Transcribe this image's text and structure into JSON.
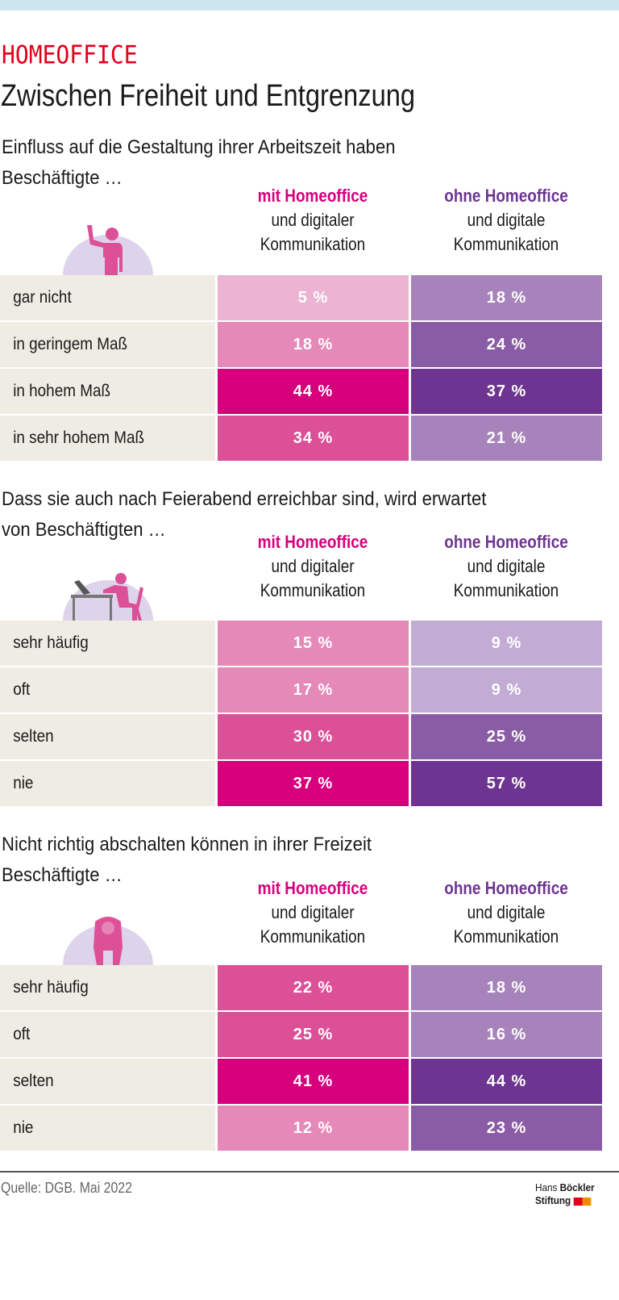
{
  "kicker": "HOMEOFFICE",
  "title": "Zwischen Freiheit und Entgrenzung",
  "colors": {
    "kicker": "#e2001a",
    "mit": "#d6007d",
    "ohne": "#6d3591",
    "label_bg": "#efede3",
    "icon_bg": "#ddd3ea",
    "pink": [
      "#ecb3d3",
      "#e589b9",
      "#dc5097",
      "#d6007d"
    ],
    "purple": [
      "#c2acd4",
      "#a783bb",
      "#8b5ca6",
      "#6d3591"
    ]
  },
  "sections": [
    {
      "question": [
        "Einfluss auf die Gestaltung ihrer Arbeitszeit haben",
        "Beschäftigte …"
      ],
      "icon": "person-raising-hand-icon",
      "col_mit": {
        "head": "mit Homeoffice",
        "sub1": "und digitaler",
        "sub2": "Kommunikation"
      },
      "col_ohne": {
        "head": "ohne Homeoffice",
        "sub1": "und digitale",
        "sub2": "Kommunikation"
      },
      "rows": [
        {
          "label": "gar nicht",
          "mit": "5 %",
          "ohne": "18 %",
          "mit_shade": 0,
          "ohne_shade": 1
        },
        {
          "label": "in geringem Maß",
          "mit": "18 %",
          "ohne": "24 %",
          "mit_shade": 1,
          "ohne_shade": 2
        },
        {
          "label": "in hohem Maß",
          "mit": "44 %",
          "ohne": "37 %",
          "mit_shade": 3,
          "ohne_shade": 3
        },
        {
          "label": "in sehr hohem Maß",
          "mit": "34 %",
          "ohne": "21 %",
          "mit_shade": 2,
          "ohne_shade": 1
        }
      ]
    },
    {
      "question": [
        "Dass sie auch nach Feierabend erreichbar sind, wird erwartet",
        "von Beschäftigten …"
      ],
      "icon": "person-at-desk-icon",
      "col_mit": {
        "head": "mit Homeoffice",
        "sub1": "und digitaler",
        "sub2": "Kommunikation"
      },
      "col_ohne": {
        "head": "ohne Homeoffice",
        "sub1": "und digitale",
        "sub2": "Kommunikation"
      },
      "rows": [
        {
          "label": "sehr häufig",
          "mit": "15 %",
          "ohne": "9 %",
          "mit_shade": 1,
          "ohne_shade": 0
        },
        {
          "label": "oft",
          "mit": "17 %",
          "ohne": "9 %",
          "mit_shade": 1,
          "ohne_shade": 0
        },
        {
          "label": "selten",
          "mit": "30 %",
          "ohne": "25 %",
          "mit_shade": 2,
          "ohne_shade": 2
        },
        {
          "label": "nie",
          "mit": "37 %",
          "ohne": "57 %",
          "mit_shade": 3,
          "ohne_shade": 3
        }
      ]
    },
    {
      "question": [
        "Nicht richtig abschalten können in ihrer Freizeit",
        "Beschäftigte …"
      ],
      "icon": "exhausted-person-icon",
      "col_mit": {
        "head": "mit Homeoffice",
        "sub1": "und digitaler",
        "sub2": "Kommunikation"
      },
      "col_ohne": {
        "head": "ohne Homeoffice",
        "sub1": "und digitale",
        "sub2": "Kommunikation"
      },
      "rows": [
        {
          "label": "sehr häufig",
          "mit": "22 %",
          "ohne": "18 %",
          "mit_shade": 2,
          "ohne_shade": 1
        },
        {
          "label": "oft",
          "mit": "25 %",
          "ohne": "16 %",
          "mit_shade": 2,
          "ohne_shade": 1
        },
        {
          "label": "selten",
          "mit": "41 %",
          "ohne": "44 %",
          "mit_shade": 3,
          "ohne_shade": 3
        },
        {
          "label": "nie",
          "mit": "12 %",
          "ohne": "23 %",
          "mit_shade": 1,
          "ohne_shade": 2
        }
      ]
    }
  ],
  "footer": {
    "source": "Quelle: DGB. Mai 2022",
    "logo_line1_a": "Hans",
    "logo_line1_b": "Böckler",
    "logo_line2": "Stiftung"
  }
}
